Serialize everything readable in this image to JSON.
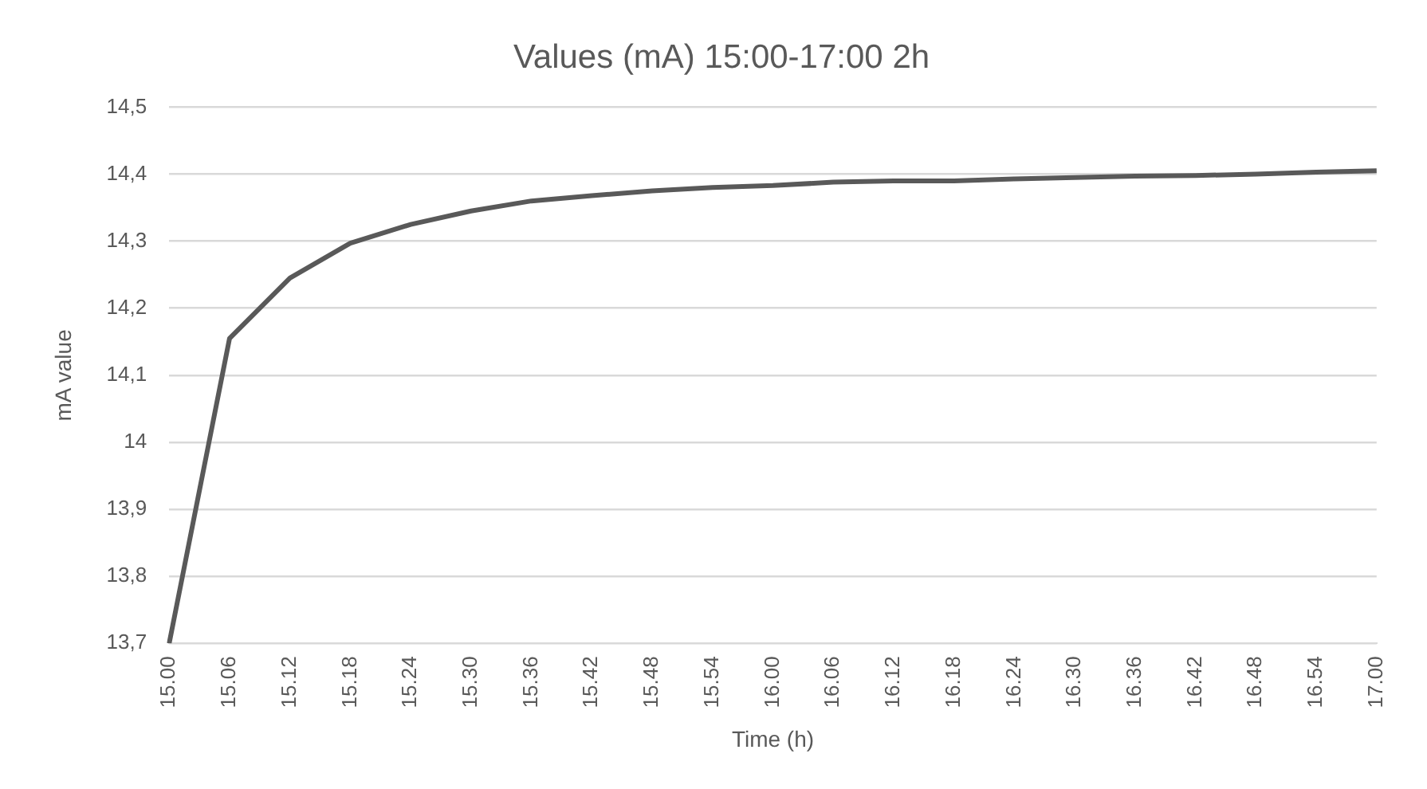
{
  "chart_data": {
    "type": "line",
    "title": "Values (mA) 15:00-17:00 2h",
    "xlabel": "Time (h)",
    "ylabel": "mA value",
    "categories": [
      "15.00",
      "15.06",
      "15.12",
      "15.18",
      "15.24",
      "15.30",
      "15.36",
      "15.42",
      "15.48",
      "15.54",
      "16.00",
      "16.06",
      "16.12",
      "16.18",
      "16.24",
      "16.30",
      "16.36",
      "16.42",
      "16.48",
      "16.54",
      "17.00"
    ],
    "series": [
      {
        "color": "#595959",
        "values": [
          13.7,
          14.155,
          14.245,
          14.297,
          14.325,
          14.345,
          14.36,
          14.368,
          14.375,
          14.38,
          14.383,
          14.388,
          14.39,
          14.39,
          14.393,
          14.395,
          14.397,
          14.398,
          14.4,
          14.403,
          14.405
        ]
      }
    ],
    "ylim": [
      13.7,
      14.5
    ],
    "yticks": [
      {
        "value": 13.7,
        "label": "13,7"
      },
      {
        "value": 13.8,
        "label": "13,8"
      },
      {
        "value": 13.9,
        "label": "13,9"
      },
      14,
      {
        "value": 14.1,
        "label": "14,1"
      },
      {
        "value": 14.2,
        "label": "14,2"
      },
      {
        "value": 14.3,
        "label": "14,3"
      },
      {
        "value": 14.4,
        "label": "14,4"
      },
      {
        "value": 14.5,
        "label": "14,5"
      }
    ],
    "grid": "y",
    "legend": false,
    "marker": "none",
    "line_style": "solid"
  }
}
